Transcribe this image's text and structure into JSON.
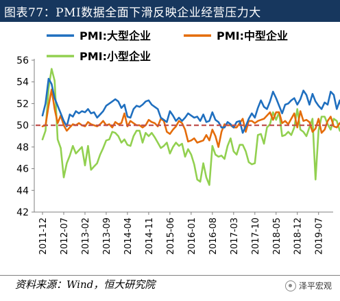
{
  "header": {
    "title": "图表77：PMI数据全面下滑反映企业经营压力大"
  },
  "footer": {
    "source": "资料来源：Wind，恒大研究院",
    "watermark": "泽平宏观"
  },
  "colors": {
    "large": "#1f6fbf",
    "medium": "#e46c0a",
    "small": "#92d050",
    "reference": "#c0504d",
    "header_bg": "#17375e"
  },
  "chart_data": {
    "type": "line",
    "ylim": [
      42,
      56
    ],
    "yticks": [
      42,
      44,
      46,
      48,
      50,
      52,
      54,
      56
    ],
    "reference_line": 50,
    "x_start": "2011-12",
    "x_end": "2019-10",
    "xtick_labels": [
      "2011-12",
      "2012-07",
      "2013-02",
      "2013-09",
      "2014-04",
      "2014-11",
      "2015-06",
      "2016-01",
      "2016-08",
      "2017-03",
      "2017-10",
      "2018-05",
      "2018-12",
      "2019-07"
    ],
    "legend": {
      "placement": "top-left"
    },
    "series": [
      {
        "name": "PMI:大型企业",
        "color": "#1f6fbf",
        "values": [
          50.9,
          52.0,
          54.3,
          53.8,
          52.5,
          51.8,
          51.1,
          50.4,
          49.9,
          51.0,
          50.8,
          51.3,
          51.1,
          51.3,
          51.2,
          51.5,
          51.1,
          51.2,
          50.7,
          51.0,
          51.3,
          51.8,
          52.0,
          52.2,
          52.4,
          52.2,
          51.6,
          51.9,
          50.8,
          50.7,
          51.5,
          51.8,
          51.7,
          51.9,
          52.2,
          52.3,
          51.9,
          51.7,
          51.5,
          50.7,
          50.5,
          50.3,
          51.3,
          50.9,
          50.4,
          50.7,
          50.4,
          50.7,
          51.1,
          50.9,
          50.7,
          50.8,
          50.4,
          51.0,
          50.3,
          50.4,
          51.2,
          50.5,
          50.3,
          49.8,
          49.8,
          50.3,
          50.1,
          49.8,
          50.3,
          50.4,
          49.3,
          49.9,
          50.6,
          51.1,
          50.7,
          51.6,
          52.3,
          51.7,
          51.5,
          52.2,
          53.1,
          52.5,
          51.8,
          51.1,
          51.9,
          52.0,
          52.3,
          52.5,
          51.9,
          52.4,
          53.2,
          52.8,
          51.9,
          52.9,
          52.2,
          51.8,
          51.5,
          52.1,
          51.9,
          53.1,
          52.8,
          51.5,
          52.3,
          51.1,
          51.5,
          52.3,
          51.3,
          51.1,
          51.5,
          50.1,
          49.8,
          49.6,
          50.6,
          51.1,
          50.8,
          50.7,
          50.4,
          49.8,
          50.7,
          50.1,
          50.8,
          50.7,
          50.1,
          49.9
        ]
      },
      {
        "name": "PMI:中型企业",
        "color": "#e46c0a",
        "values": [
          49.9,
          50.0,
          51.8,
          53.3,
          51.5,
          50.2,
          50.9,
          50.0,
          49.5,
          49.8,
          50.1,
          50.0,
          50.2,
          50.0,
          49.9,
          50.3,
          50.1,
          50.0,
          49.9,
          50.1,
          50.4,
          50.0,
          50.1,
          49.8,
          50.3,
          50.1,
          50.2,
          51.1,
          49.9,
          50.4,
          50.2,
          50.0,
          50.0,
          49.8,
          50.0,
          50.5,
          50.3,
          50.2,
          49.9,
          50.6,
          50.4,
          49.4,
          49.2,
          49.6,
          49.9,
          50.4,
          50.2,
          49.6,
          48.5,
          48.6,
          48.8,
          48.4,
          48.5,
          48.6,
          49.1,
          48.6,
          49.6,
          49.0,
          48.0,
          49.4,
          50.1,
          50.0,
          50.0,
          49.8,
          49.8,
          50.2,
          50.6,
          49.4,
          50.4,
          50.4,
          50.2,
          50.4,
          50.5,
          50.6,
          50.9,
          51.2,
          50.5,
          51.2,
          51.2,
          50.2,
          50.4,
          50.1,
          50.6,
          51.1,
          49.8,
          51.3,
          50.4,
          50.5,
          50.3,
          49.4,
          49.7,
          50.6,
          49.3,
          49.6,
          50.4,
          50.8,
          49.9,
          49.8,
          50.2,
          50.4,
          49.6,
          49.1,
          48.1,
          47.4,
          46.9,
          50.2,
          50.0,
          49.1,
          49.6,
          48.6,
          48.5,
          49.0,
          48.5,
          48.6,
          49.0,
          49.0
        ]
      },
      {
        "name": "PMI:小型企业",
        "color": "#92d050",
        "values": [
          48.7,
          49.5,
          53.4,
          55.2,
          54.1,
          48.7,
          47.9,
          45.2,
          46.5,
          47.2,
          48.1,
          47.4,
          47.7,
          48.0,
          46.3,
          48.1,
          45.9,
          46.2,
          46.5,
          47.3,
          47.9,
          48.6,
          48.7,
          49.4,
          49.3,
          49.0,
          48.4,
          48.7,
          48.2,
          48.1,
          49.0,
          49.5,
          49.5,
          48.4,
          49.3,
          49.0,
          49.3,
          48.9,
          48.4,
          47.9,
          48.1,
          48.4,
          47.4,
          48.0,
          48.4,
          48.1,
          48.3,
          47.1,
          47.8,
          47.3,
          46.4,
          45.0,
          44.8,
          46.5,
          45.2,
          44.5,
          48.1,
          47.3,
          47.1,
          47.2,
          46.9,
          48.1,
          48.8,
          47.6,
          47.3,
          48.2,
          48.2,
          47.6,
          46.6,
          46.4,
          46.5,
          49.1,
          49.2,
          48.3,
          49.8,
          50.1,
          51.2,
          50.5,
          51.2,
          49.0,
          49.1,
          49.4,
          49.1,
          49.8,
          51.5,
          49.6,
          49.4,
          49.0,
          49.8,
          50.6,
          45.0,
          49.5,
          50.8,
          50.8,
          50.1,
          49.6,
          50.6,
          50.4,
          49.5,
          49.3,
          48.4,
          47.2,
          46.0,
          45.3,
          46.3,
          49.7,
          47.8,
          48.5,
          49.8,
          49.0,
          48.8,
          48.1,
          48.6,
          48.3,
          48.4,
          47.9
        ]
      }
    ]
  }
}
